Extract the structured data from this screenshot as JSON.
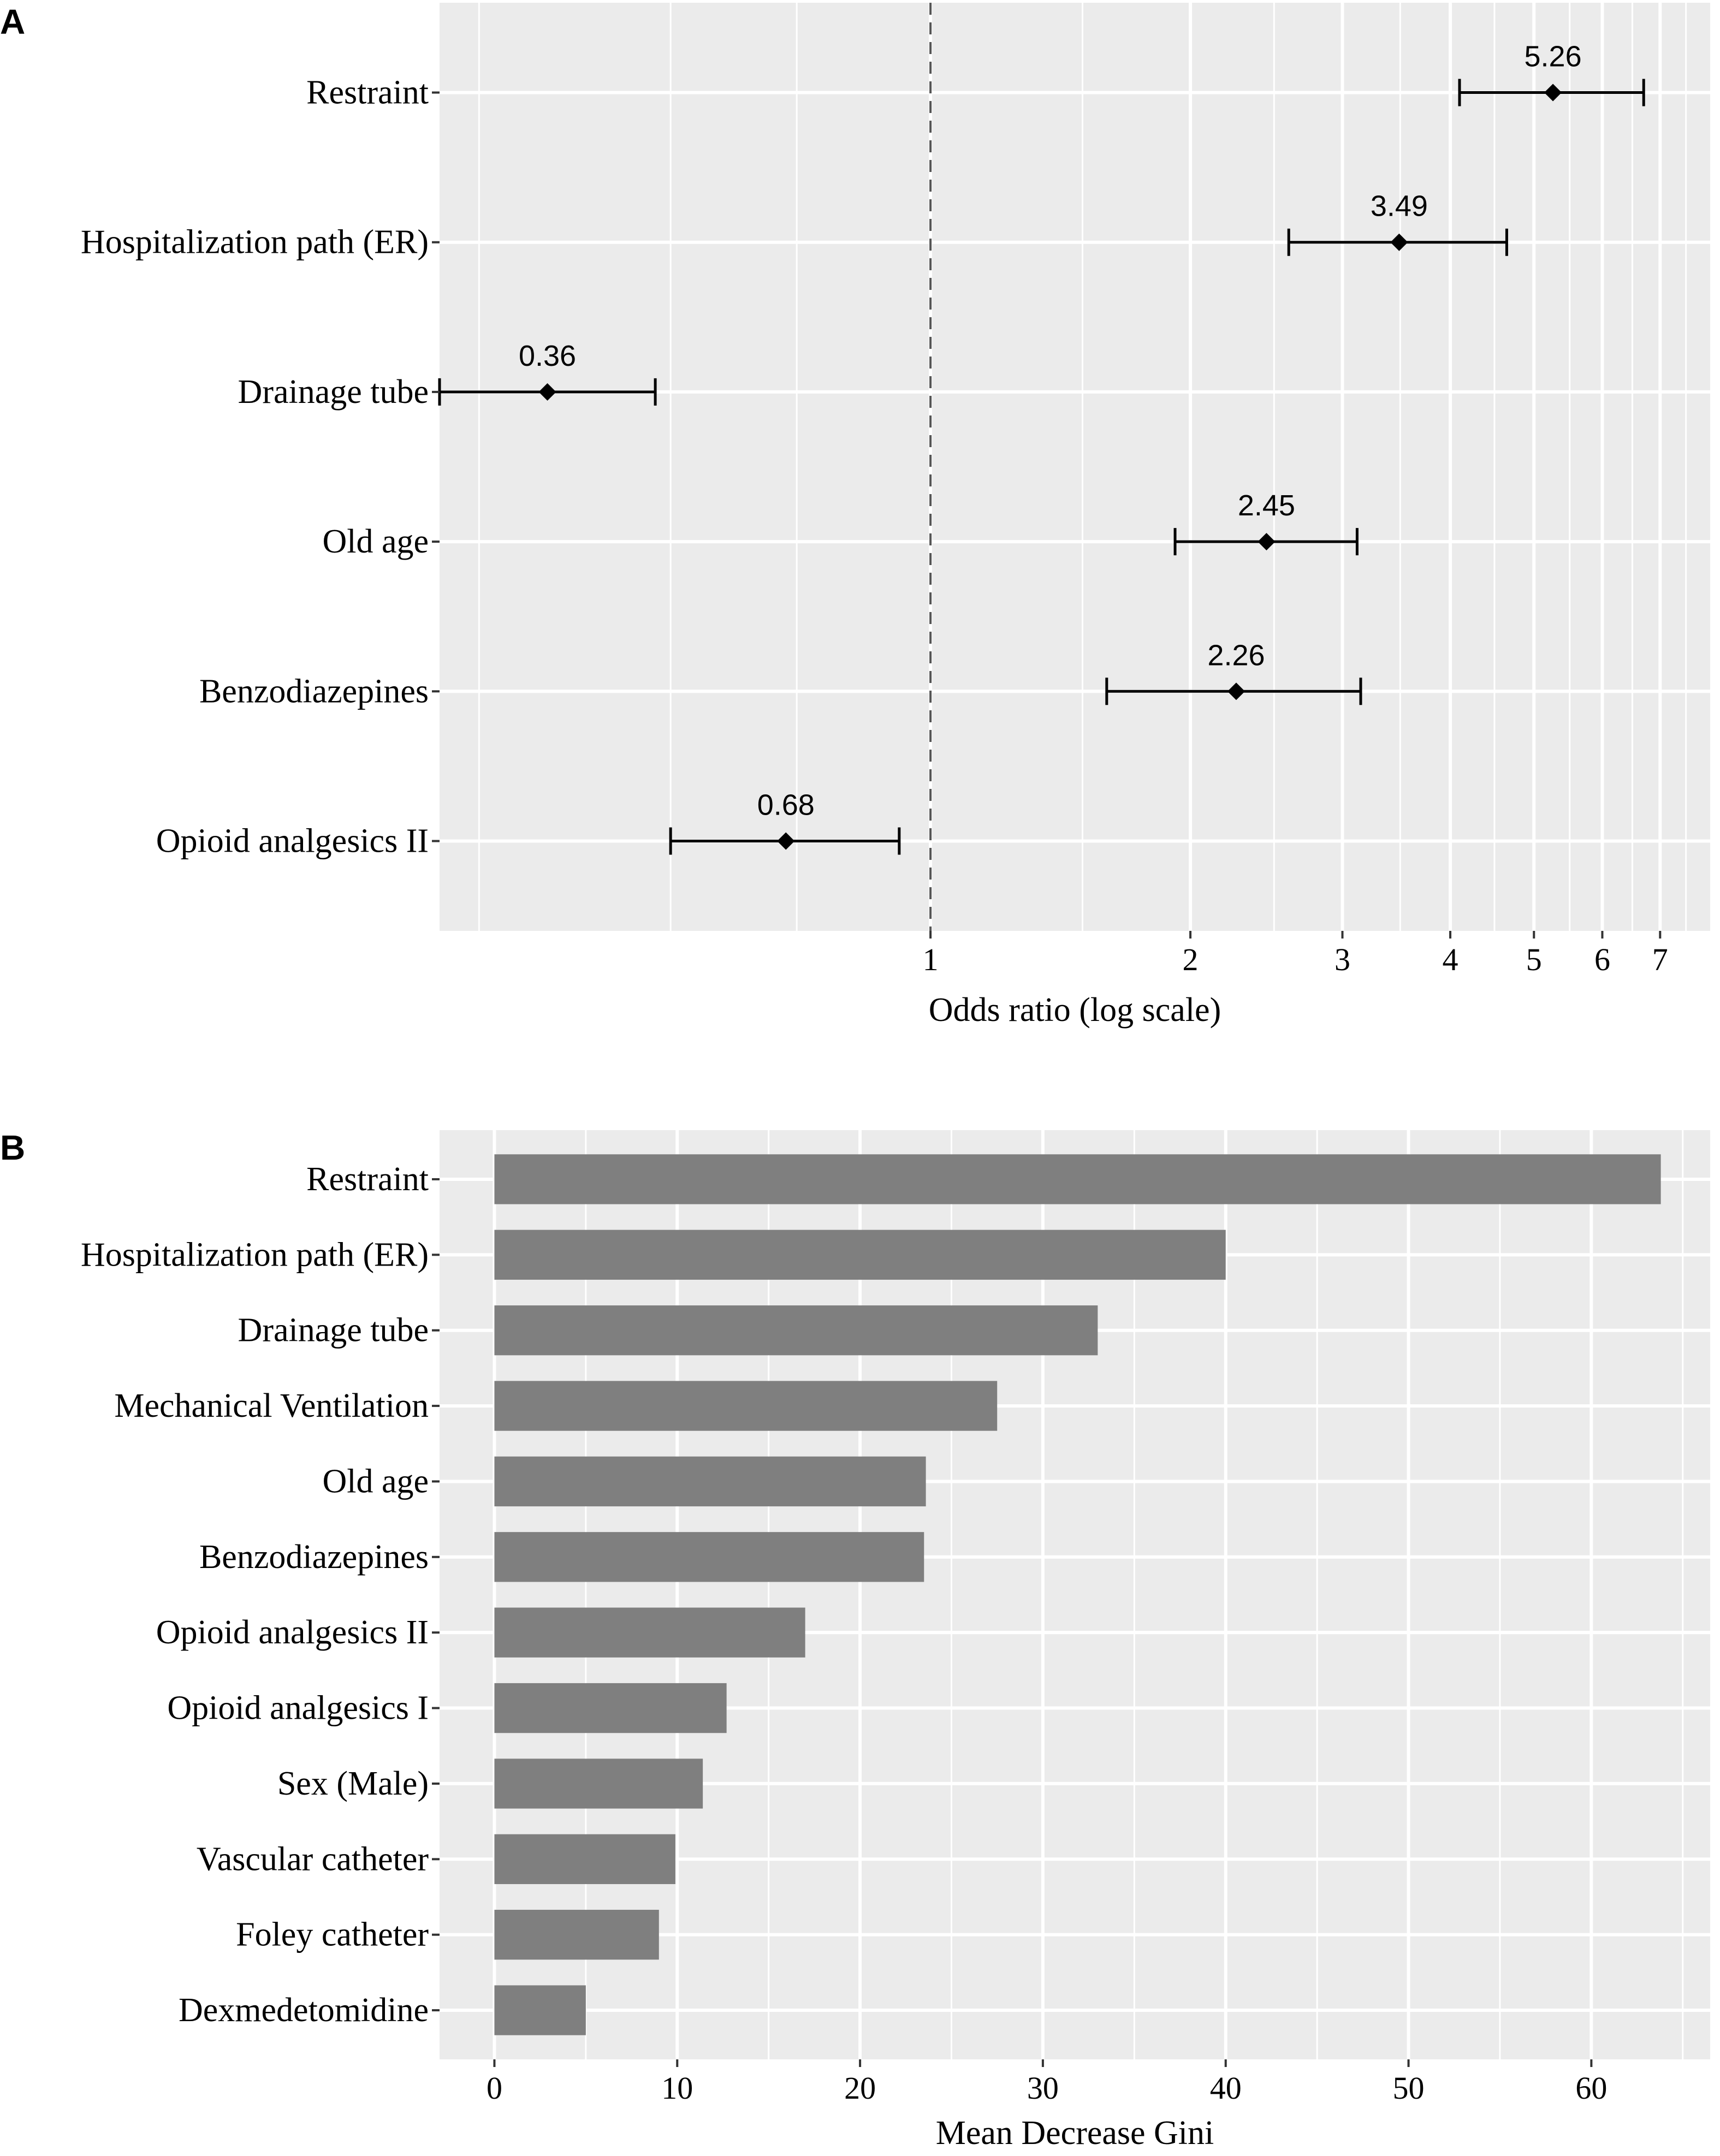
{
  "chart_data": [
    {
      "panel": "A",
      "type": "forest",
      "xlabel": "Odds ratio (log scale)",
      "xscale": "log",
      "xlim": [
        0.27,
        8.0
      ],
      "xticks": [
        1,
        2,
        3,
        4,
        5,
        6,
        7
      ],
      "reference_line": 1,
      "categories": [
        "Restraint",
        "Hospitalization path (ER)",
        "Drainage tube",
        "Old age",
        "Benzodiazepines",
        "Opioid analgesics II"
      ],
      "estimates": [
        {
          "label": "Restraint",
          "or": 5.26,
          "or_label": "5.26",
          "lower": 4.1,
          "upper": 6.7
        },
        {
          "label": "Hospitalization path (ER)",
          "or": 3.49,
          "or_label": "3.49",
          "lower": 2.6,
          "upper": 4.65
        },
        {
          "label": "Drainage tube",
          "or": 0.36,
          "or_label": "0.36",
          "lower": 0.27,
          "upper": 0.48
        },
        {
          "label": "Old age",
          "or": 2.45,
          "or_label": "2.45",
          "lower": 1.92,
          "upper": 3.12
        },
        {
          "label": "Benzodiazepines",
          "or": 2.26,
          "or_label": "2.26",
          "lower": 1.6,
          "upper": 3.15
        },
        {
          "label": "Opioid analgesics II",
          "or": 0.68,
          "or_label": "0.68",
          "lower": 0.5,
          "upper": 0.92
        }
      ]
    },
    {
      "panel": "B",
      "type": "bar",
      "orientation": "horizontal",
      "xlabel": "Mean Decrease Gini",
      "xlim": [
        -3,
        66.5
      ],
      "xticks": [
        0,
        10,
        20,
        30,
        40,
        50,
        60
      ],
      "bar_color": "#7f7f7f",
      "categories": [
        "Restraint",
        "Hospitalization path (ER)",
        "Drainage tube",
        "Mechanical Ventilation",
        "Old age",
        "Benzodiazepines",
        "Opioid analgesics II",
        "Opioid analgesics I",
        "Sex (Male)",
        "Vascular catheter",
        "Foley catheter",
        "Dexmedetomidine"
      ],
      "values": [
        63.8,
        40.0,
        33.0,
        27.5,
        23.6,
        23.5,
        17.0,
        12.7,
        11.4,
        9.9,
        9.0,
        5.0
      ]
    }
  ]
}
